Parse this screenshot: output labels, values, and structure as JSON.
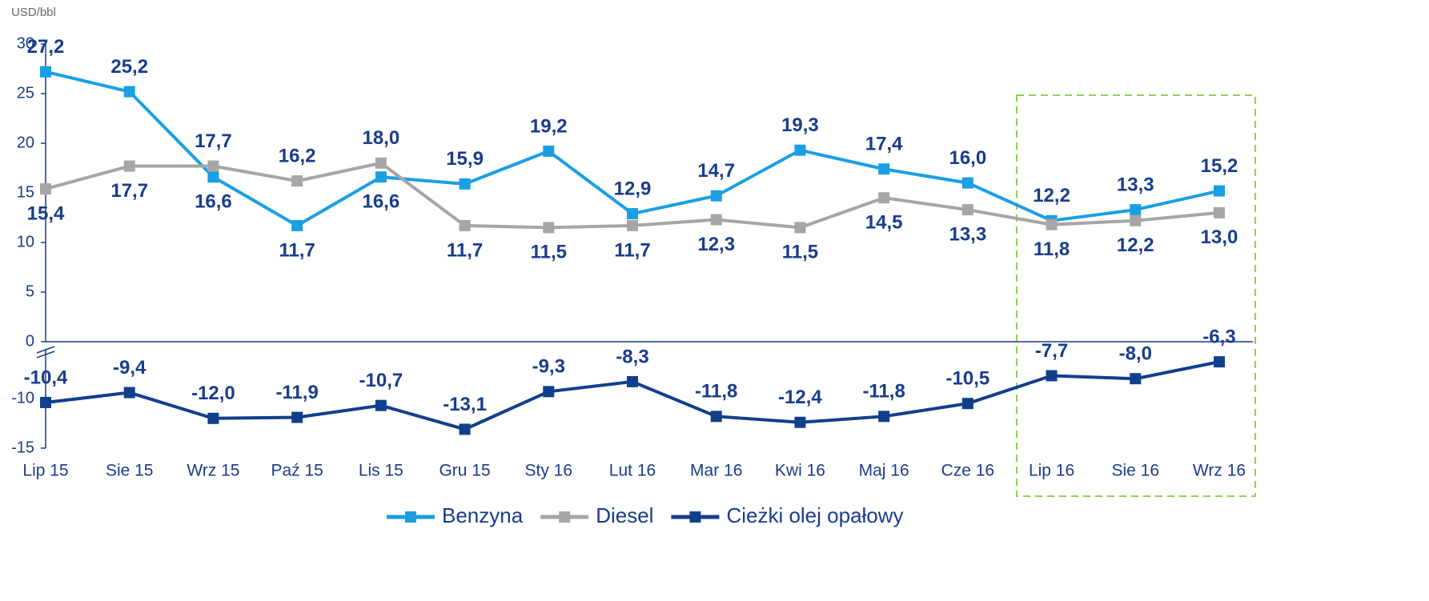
{
  "chart_data": {
    "type": "line",
    "y_axis_label": "USD/bbl",
    "categories": [
      "Lip 15",
      "Sie 15",
      "Wrz 15",
      "Paź 15",
      "Lis 15",
      "Gru 15",
      "Sty 16",
      "Lut 16",
      "Mar 16",
      "Kwi 16",
      "Maj 16",
      "Cze 16",
      "Lip 16",
      "Sie 16",
      "Wrz 16"
    ],
    "series": [
      {
        "name": "Benzyna",
        "color": "#1a9fe3",
        "values": [
          27.2,
          25.2,
          16.6,
          11.7,
          16.6,
          15.9,
          19.2,
          12.9,
          14.7,
          19.3,
          17.4,
          16.0,
          12.2,
          13.3,
          15.2
        ],
        "value_labels": [
          "27,2",
          "25,2",
          "16,6",
          "11,7",
          "16,6",
          "15,9",
          "19,2",
          "12,9",
          "14,7",
          "19,3",
          "17,4",
          "16,0",
          "12,2",
          "13,3",
          "15,2"
        ]
      },
      {
        "name": "Diesel",
        "color": "#a6a6a6",
        "values": [
          15.4,
          17.7,
          17.7,
          16.2,
          18.0,
          11.7,
          11.5,
          11.7,
          12.3,
          11.5,
          14.5,
          13.3,
          11.8,
          12.2,
          13.0
        ],
        "value_labels": [
          "15,4",
          "17,7",
          "17,7",
          "16,2",
          "18,0",
          "11,7",
          "11,5",
          "11,7",
          "12,3",
          "11,5",
          "14,5",
          "13,3",
          "11,8",
          "12,2",
          "13,0"
        ]
      },
      {
        "name": "Cieżki olej opałowy",
        "color": "#123f8c",
        "values": [
          -10.4,
          -9.4,
          -12.0,
          -11.9,
          -10.7,
          -13.1,
          -9.3,
          -8.3,
          -11.8,
          -12.4,
          -11.8,
          -10.5,
          -7.7,
          -8.0,
          -6.3
        ],
        "value_labels": [
          "-10,4",
          "-9,4",
          "-12,0",
          "-11,9",
          "-10,7",
          "-13,1",
          "-9,3",
          "-8,3",
          "-11,8",
          "-12,4",
          "-11,8",
          "-10,5",
          "-7,7",
          "-8,0",
          "-6,3"
        ]
      }
    ],
    "ylim": [
      -15,
      30
    ],
    "axis_break": [
      -5,
      0
    ],
    "yticks": [
      30,
      25,
      20,
      15,
      10,
      5,
      0,
      -10,
      -15
    ],
    "legend": "bottom"
  }
}
